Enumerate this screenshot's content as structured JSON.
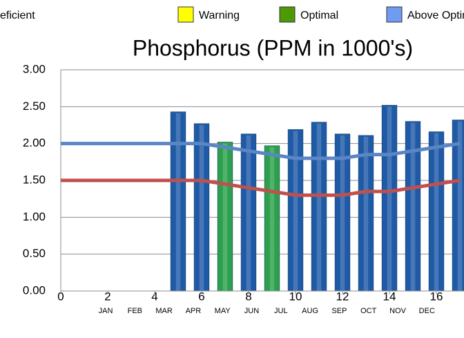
{
  "chart_data": {
    "type": "bar",
    "title": "Phosphorus (PPM in 1000's)",
    "legend": [
      {
        "name": "eficient",
        "color": null
      },
      {
        "name": "Warning",
        "color": "#ffff00"
      },
      {
        "name": "Optimal",
        "color": "#4e9a06"
      },
      {
        "name": "Above Optimal",
        "color": "#6f9bf0"
      }
    ],
    "x": [
      5,
      6,
      7,
      8,
      9,
      10,
      11,
      12,
      13,
      14,
      15,
      16,
      17
    ],
    "values": [
      2.43,
      2.27,
      2.02,
      2.13,
      1.97,
      2.19,
      2.29,
      2.13,
      2.11,
      2.52,
      2.3,
      2.16,
      2.32
    ],
    "colors": [
      "#1f5aa6",
      "#1f5aa6",
      "#2ca04c",
      "#1f5aa6",
      "#2ca04c",
      "#1f5aa6",
      "#1f5aa6",
      "#1f5aa6",
      "#1f5aa6",
      "#1f5aa6",
      "#1f5aa6",
      "#1f5aa6",
      "#1f5aa6"
    ],
    "lines": [
      {
        "color": "#5b86c5",
        "x": [
          0,
          1,
          2,
          3,
          4,
          5,
          6,
          7,
          8,
          9,
          10,
          11,
          12,
          13,
          14,
          15,
          16,
          17
        ],
        "values": [
          2,
          2,
          2,
          2,
          2,
          2,
          2,
          1.95,
          1.9,
          1.85,
          1.8,
          1.8,
          1.8,
          1.85,
          1.85,
          1.9,
          1.95,
          2.0
        ]
      },
      {
        "color": "#c0504d",
        "x": [
          0,
          1,
          2,
          3,
          4,
          5,
          6,
          7,
          8,
          9,
          10,
          11,
          12,
          13,
          14,
          15,
          16,
          17
        ],
        "values": [
          1.5,
          1.5,
          1.5,
          1.5,
          1.5,
          1.5,
          1.5,
          1.45,
          1.4,
          1.35,
          1.3,
          1.3,
          1.3,
          1.35,
          1.35,
          1.4,
          1.45,
          1.5
        ]
      }
    ],
    "xlim": [
      0,
      17
    ],
    "xticks": [
      0,
      2,
      4,
      6,
      8,
      10,
      12,
      14,
      16
    ],
    "ylim": [
      0,
      3
    ],
    "yticks": [
      {
        "value": 0,
        "label": "0.00"
      },
      {
        "value": 0.5,
        "label": "0.50"
      },
      {
        "value": 1,
        "label": "1.00"
      },
      {
        "value": 1.5,
        "label": "1.50"
      },
      {
        "value": 2,
        "label": "2.00"
      },
      {
        "value": 2.5,
        "label": "2.50"
      },
      {
        "value": 3,
        "label": "3.00"
      }
    ],
    "month_labels": [
      "JAN",
      "FEB",
      "MAR",
      "APR",
      "MAY",
      "JUN",
      "JUL",
      "AUG",
      "SEP",
      "OCT",
      "NOV",
      "DEC"
    ],
    "grid": true
  }
}
